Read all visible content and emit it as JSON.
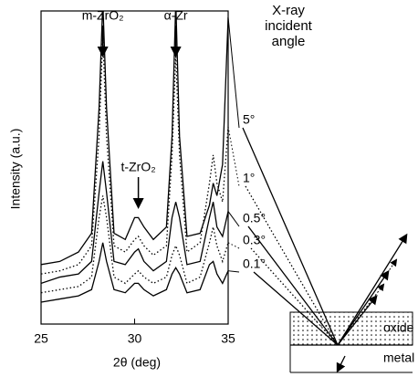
{
  "chart_data": {
    "type": "line",
    "x_label": "2θ  (deg)",
    "y_label": "Intensity (a.u.)",
    "legend_title": "X-ray incident angle",
    "x": [
      25,
      26,
      27,
      27.7,
      28.1,
      28.3,
      28.5,
      28.9,
      29.5,
      30,
      30.2,
      30.5,
      31,
      31.7,
      32,
      32.2,
      32.4,
      32.8,
      33.5,
      34,
      34.2,
      34.4,
      34.7,
      35
    ],
    "series": [
      {
        "name": "5°",
        "color": "#000000",
        "line_style": "solid",
        "values": [
          19,
          20,
          23,
          29,
          69,
          103,
          69,
          29,
          27,
          34,
          34,
          31,
          27,
          31,
          60,
          103,
          60,
          28,
          29,
          38,
          45,
          41,
          51,
          98
        ]
      },
      {
        "name": "1°",
        "color": "#000000",
        "line_style": "dotted",
        "values": [
          16,
          17,
          19,
          25,
          60,
          92,
          60,
          25,
          23,
          27,
          28,
          25,
          22,
          25,
          54,
          86,
          54,
          23,
          26,
          45,
          54,
          45,
          39,
          63
        ]
      },
      {
        "name": "0.5°",
        "color": "#000000",
        "line_style": "solid",
        "values": [
          13,
          15,
          16,
          20,
          42,
          52,
          42,
          20,
          19,
          23,
          24,
          20,
          17,
          20,
          34,
          39,
          34,
          19,
          20,
          34,
          39,
          31,
          28,
          36
        ]
      },
      {
        "name": "0.3°",
        "color": "#000000",
        "line_style": "dotted",
        "values": [
          10,
          11,
          12,
          15,
          34,
          41,
          34,
          15,
          13,
          16,
          17,
          15,
          13,
          15,
          22,
          25,
          22,
          13,
          15,
          26,
          31,
          25,
          20,
          26
        ]
      },
      {
        "name": "0.1°",
        "color": "#000000",
        "line_style": "solid",
        "values": [
          7,
          8,
          9,
          11,
          20,
          26,
          20,
          11,
          10,
          13,
          13,
          11,
          9,
          11,
          16,
          18,
          16,
          10,
          11,
          19,
          20,
          16,
          13,
          17
        ]
      }
    ],
    "annotations": [
      {
        "text": "m-ZrO₂",
        "x": 28.3
      },
      {
        "text": "α-Zr",
        "x": 32.2
      },
      {
        "text": "t-ZrO₂",
        "x": 30.2
      }
    ],
    "inset_labels": [
      "oxide",
      "metal"
    ],
    "xlim": [
      25,
      35
    ],
    "xticks": [
      25,
      30,
      35
    ],
    "ylim": [
      0,
      100
    ]
  }
}
